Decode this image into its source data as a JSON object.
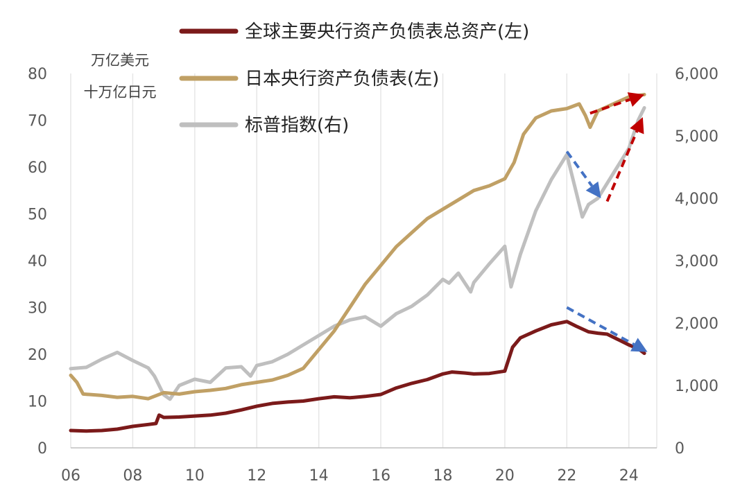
{
  "chart_data": {
    "type": "line",
    "units": {
      "left_1": "万亿美元",
      "left_2": "十万亿日元"
    },
    "x_ticks": [
      "06",
      "08",
      "10",
      "12",
      "14",
      "16",
      "18",
      "20",
      "22",
      "24"
    ],
    "x_tick_values": [
      2006,
      2008,
      2010,
      2012,
      2014,
      2016,
      2018,
      2020,
      2022,
      2024
    ],
    "xlim": [
      2006,
      2024.9
    ],
    "left_ylim": [
      0,
      80
    ],
    "right_ylim": [
      0,
      6000
    ],
    "left_ticks": [
      "0",
      "10",
      "20",
      "30",
      "40",
      "50",
      "60",
      "70",
      "80"
    ],
    "left_tick_values": [
      0,
      10,
      20,
      30,
      40,
      50,
      60,
      70,
      80
    ],
    "right_ticks": [
      "0",
      "1,000",
      "2,000",
      "3,000",
      "4,000",
      "5,000",
      "6,000"
    ],
    "right_tick_values": [
      0,
      1000,
      2000,
      3000,
      4000,
      5000,
      6000
    ],
    "grid": "vertical",
    "legend_position": "top",
    "series": [
      {
        "name": "全球主要央行资产负债表总资产(左)",
        "axis": "left",
        "color": "#7b1a1a",
        "points": [
          [
            2006.0,
            3.7
          ],
          [
            2006.5,
            3.6
          ],
          [
            2007.0,
            3.7
          ],
          [
            2007.5,
            4.0
          ],
          [
            2008.0,
            4.6
          ],
          [
            2008.5,
            5.0
          ],
          [
            2008.75,
            5.2
          ],
          [
            2008.85,
            7.0
          ],
          [
            2009.0,
            6.5
          ],
          [
            2009.5,
            6.6
          ],
          [
            2010.0,
            6.8
          ],
          [
            2010.5,
            7.0
          ],
          [
            2011.0,
            7.4
          ],
          [
            2011.5,
            8.1
          ],
          [
            2012.0,
            8.9
          ],
          [
            2012.5,
            9.5
          ],
          [
            2013.0,
            9.8
          ],
          [
            2013.5,
            10.0
          ],
          [
            2014.0,
            10.5
          ],
          [
            2014.5,
            10.9
          ],
          [
            2015.0,
            10.7
          ],
          [
            2015.5,
            11.0
          ],
          [
            2016.0,
            11.4
          ],
          [
            2016.5,
            12.8
          ],
          [
            2017.0,
            13.8
          ],
          [
            2017.5,
            14.6
          ],
          [
            2018.0,
            15.8
          ],
          [
            2018.3,
            16.2
          ],
          [
            2018.7,
            16.0
          ],
          [
            2019.0,
            15.8
          ],
          [
            2019.5,
            15.9
          ],
          [
            2020.0,
            16.4
          ],
          [
            2020.25,
            21.5
          ],
          [
            2020.5,
            23.5
          ],
          [
            2021.0,
            25.0
          ],
          [
            2021.5,
            26.3
          ],
          [
            2022.0,
            27.0
          ],
          [
            2022.3,
            26.0
          ],
          [
            2022.7,
            24.8
          ],
          [
            2023.0,
            24.5
          ],
          [
            2023.3,
            24.3
          ],
          [
            2023.7,
            23.0
          ],
          [
            2024.0,
            22.0
          ],
          [
            2024.3,
            21.2
          ],
          [
            2024.5,
            20.2
          ]
        ]
      },
      {
        "name": "日本央行资产负债表(左)",
        "axis": "left",
        "color": "#c0a065",
        "points": [
          [
            2006.0,
            15.5
          ],
          [
            2006.2,
            14.0
          ],
          [
            2006.4,
            11.5
          ],
          [
            2007.0,
            11.2
          ],
          [
            2007.5,
            10.8
          ],
          [
            2008.0,
            11.0
          ],
          [
            2008.5,
            10.5
          ],
          [
            2009.0,
            11.8
          ],
          [
            2009.5,
            11.5
          ],
          [
            2010.0,
            12.0
          ],
          [
            2010.5,
            12.3
          ],
          [
            2011.0,
            12.7
          ],
          [
            2011.5,
            13.5
          ],
          [
            2012.0,
            14.0
          ],
          [
            2012.5,
            14.5
          ],
          [
            2013.0,
            15.5
          ],
          [
            2013.5,
            17.0
          ],
          [
            2014.0,
            21.0
          ],
          [
            2014.5,
            25.0
          ],
          [
            2015.0,
            30.0
          ],
          [
            2015.5,
            35.0
          ],
          [
            2016.0,
            39.0
          ],
          [
            2016.5,
            43.0
          ],
          [
            2017.0,
            46.0
          ],
          [
            2017.5,
            49.0
          ],
          [
            2018.0,
            51.0
          ],
          [
            2018.5,
            53.0
          ],
          [
            2019.0,
            55.0
          ],
          [
            2019.5,
            56.0
          ],
          [
            2020.0,
            57.5
          ],
          [
            2020.3,
            61.0
          ],
          [
            2020.6,
            67.0
          ],
          [
            2021.0,
            70.5
          ],
          [
            2021.5,
            72.0
          ],
          [
            2022.0,
            72.5
          ],
          [
            2022.4,
            73.5
          ],
          [
            2022.6,
            71.0
          ],
          [
            2022.75,
            68.5
          ],
          [
            2023.0,
            72.0
          ],
          [
            2023.5,
            73.5
          ],
          [
            2024.0,
            75.0
          ],
          [
            2024.5,
            75.5
          ]
        ]
      },
      {
        "name": "标普指数(右)",
        "axis": "right",
        "color": "#bfbfbf",
        "points": [
          [
            2006.0,
            1270
          ],
          [
            2006.5,
            1290
          ],
          [
            2007.0,
            1420
          ],
          [
            2007.5,
            1530
          ],
          [
            2008.0,
            1400
          ],
          [
            2008.5,
            1280
          ],
          [
            2008.7,
            1150
          ],
          [
            2009.0,
            850
          ],
          [
            2009.2,
            780
          ],
          [
            2009.5,
            1000
          ],
          [
            2010.0,
            1100
          ],
          [
            2010.5,
            1050
          ],
          [
            2011.0,
            1280
          ],
          [
            2011.5,
            1300
          ],
          [
            2011.8,
            1150
          ],
          [
            2012.0,
            1320
          ],
          [
            2012.5,
            1380
          ],
          [
            2013.0,
            1500
          ],
          [
            2013.5,
            1650
          ],
          [
            2014.0,
            1800
          ],
          [
            2014.5,
            1950
          ],
          [
            2015.0,
            2050
          ],
          [
            2015.5,
            2100
          ],
          [
            2016.0,
            1950
          ],
          [
            2016.5,
            2150
          ],
          [
            2017.0,
            2270
          ],
          [
            2017.5,
            2450
          ],
          [
            2018.0,
            2700
          ],
          [
            2018.2,
            2640
          ],
          [
            2018.5,
            2800
          ],
          [
            2018.9,
            2500
          ],
          [
            2019.0,
            2650
          ],
          [
            2019.5,
            2950
          ],
          [
            2020.0,
            3230
          ],
          [
            2020.2,
            2580
          ],
          [
            2020.5,
            3100
          ],
          [
            2021.0,
            3800
          ],
          [
            2021.5,
            4300
          ],
          [
            2022.0,
            4700
          ],
          [
            2022.2,
            4300
          ],
          [
            2022.5,
            3700
          ],
          [
            2022.7,
            3900
          ],
          [
            2023.0,
            4000
          ],
          [
            2023.5,
            4400
          ],
          [
            2024.0,
            4800
          ],
          [
            2024.3,
            5250
          ],
          [
            2024.5,
            5450
          ]
        ]
      }
    ],
    "annotations": [
      {
        "type": "arrow",
        "style": "dashed",
        "color": "#c00000",
        "from": [
          2022.75,
          71.5
        ],
        "to": [
          2024.5,
          75.5
        ],
        "axis": "left"
      },
      {
        "type": "arrow",
        "style": "dashed",
        "color": "#c00000",
        "from": [
          2023.3,
          3950
        ],
        "to": [
          2024.45,
          5300
        ],
        "axis": "right"
      },
      {
        "type": "arrow",
        "style": "dashed",
        "color": "#4472c4",
        "from": [
          2022.0,
          4750
        ],
        "to": [
          2023.1,
          4000
        ],
        "axis": "right"
      },
      {
        "type": "arrow",
        "style": "dashed",
        "color": "#4472c4",
        "from": [
          2022.0,
          30.0
        ],
        "to": [
          2024.6,
          20.5
        ],
        "axis": "left"
      }
    ]
  }
}
